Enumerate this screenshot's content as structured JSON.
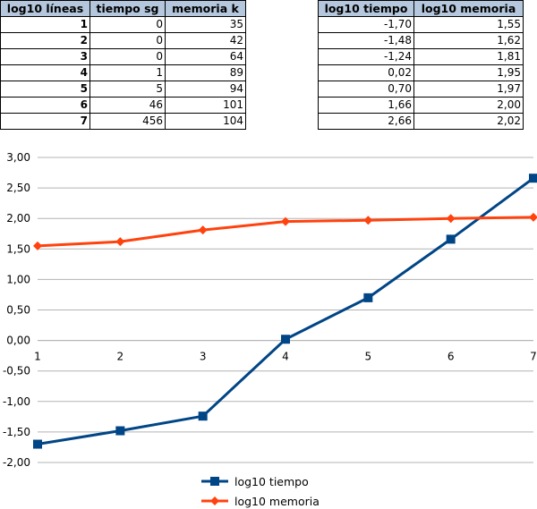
{
  "table1": {
    "headers": [
      "log10 líneas",
      "tiempo sg",
      "memoria k"
    ],
    "rows": [
      [
        "1",
        "0",
        "35"
      ],
      [
        "2",
        "0",
        "42"
      ],
      [
        "3",
        "0",
        "64"
      ],
      [
        "4",
        "1",
        "89"
      ],
      [
        "5",
        "5",
        "94"
      ],
      [
        "6",
        "46",
        "101"
      ],
      [
        "7",
        "456",
        "104"
      ]
    ]
  },
  "table2": {
    "headers": [
      "log10 tiempo",
      "log10 memoria"
    ],
    "rows": [
      [
        "-1,70",
        "1,55"
      ],
      [
        "-1,48",
        "1,62"
      ],
      [
        "-1,24",
        "1,81"
      ],
      [
        "0,02",
        "1,95"
      ],
      [
        "0,70",
        "1,97"
      ],
      [
        "1,66",
        "2,00"
      ],
      [
        "2,66",
        "2,02"
      ]
    ]
  },
  "chart_data": {
    "type": "line",
    "x": [
      1,
      2,
      3,
      4,
      5,
      6,
      7
    ],
    "x_tick_labels": [
      "1",
      "2",
      "3",
      "4",
      "5",
      "6",
      "7"
    ],
    "y_tick_labels": [
      "3,00",
      "2,50",
      "2,00",
      "1,50",
      "1,00",
      "0,50",
      "0,00",
      "-0,50",
      "-1,00",
      "-1,50",
      "-2,00"
    ],
    "ylim": [
      -2,
      3
    ],
    "grid": true,
    "legend_position": "bottom",
    "series": [
      {
        "name": "log10 tiempo",
        "values": [
          -1.7,
          -1.48,
          -1.24,
          0.02,
          0.7,
          1.66,
          2.66
        ],
        "color": "#004586",
        "marker": "square"
      },
      {
        "name": "log10 memoria",
        "values": [
          1.55,
          1.62,
          1.81,
          1.95,
          1.97,
          2.0,
          2.02
        ],
        "color": "#ff420e",
        "marker": "diamond"
      }
    ]
  }
}
